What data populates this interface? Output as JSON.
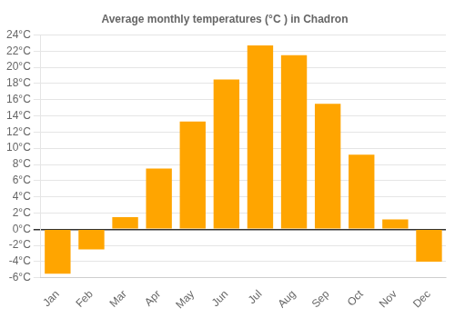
{
  "chart_data": {
    "type": "bar",
    "title": "Average monthly temperatures (°C ) in Chadron",
    "categories": [
      "Jan",
      "Feb",
      "Mar",
      "Apr",
      "May",
      "Jun",
      "Jul",
      "Aug",
      "Sep",
      "Oct",
      "Nov",
      "Dec"
    ],
    "values": [
      -5.5,
      -2.5,
      1.5,
      7.5,
      13.3,
      18.5,
      22.7,
      21.5,
      15.5,
      9.2,
      1.2,
      -4.0
    ],
    "color": "#FFA500",
    "ylim": [
      -6,
      24
    ],
    "yticks": [
      {
        "value": -6,
        "label": "-6°C"
      },
      {
        "value": -4,
        "label": "-4°C"
      },
      {
        "value": -2,
        "label": "-2°C"
      },
      {
        "value": 0,
        "label": "0°C"
      },
      {
        "value": 2,
        "label": "2°C"
      },
      {
        "value": 4,
        "label": "4°C"
      },
      {
        "value": 6,
        "label": "6°C"
      },
      {
        "value": 8,
        "label": "8°C"
      },
      {
        "value": 10,
        "label": "10°C"
      },
      {
        "value": 12,
        "label": "12°C"
      },
      {
        "value": 14,
        "label": "14°C"
      },
      {
        "value": 16,
        "label": "16°C"
      },
      {
        "value": 18,
        "label": "18°C"
      },
      {
        "value": 20,
        "label": "20°C"
      },
      {
        "value": 22,
        "label": "22°C"
      },
      {
        "value": 24,
        "label": "24°C"
      }
    ],
    "grid": true
  }
}
